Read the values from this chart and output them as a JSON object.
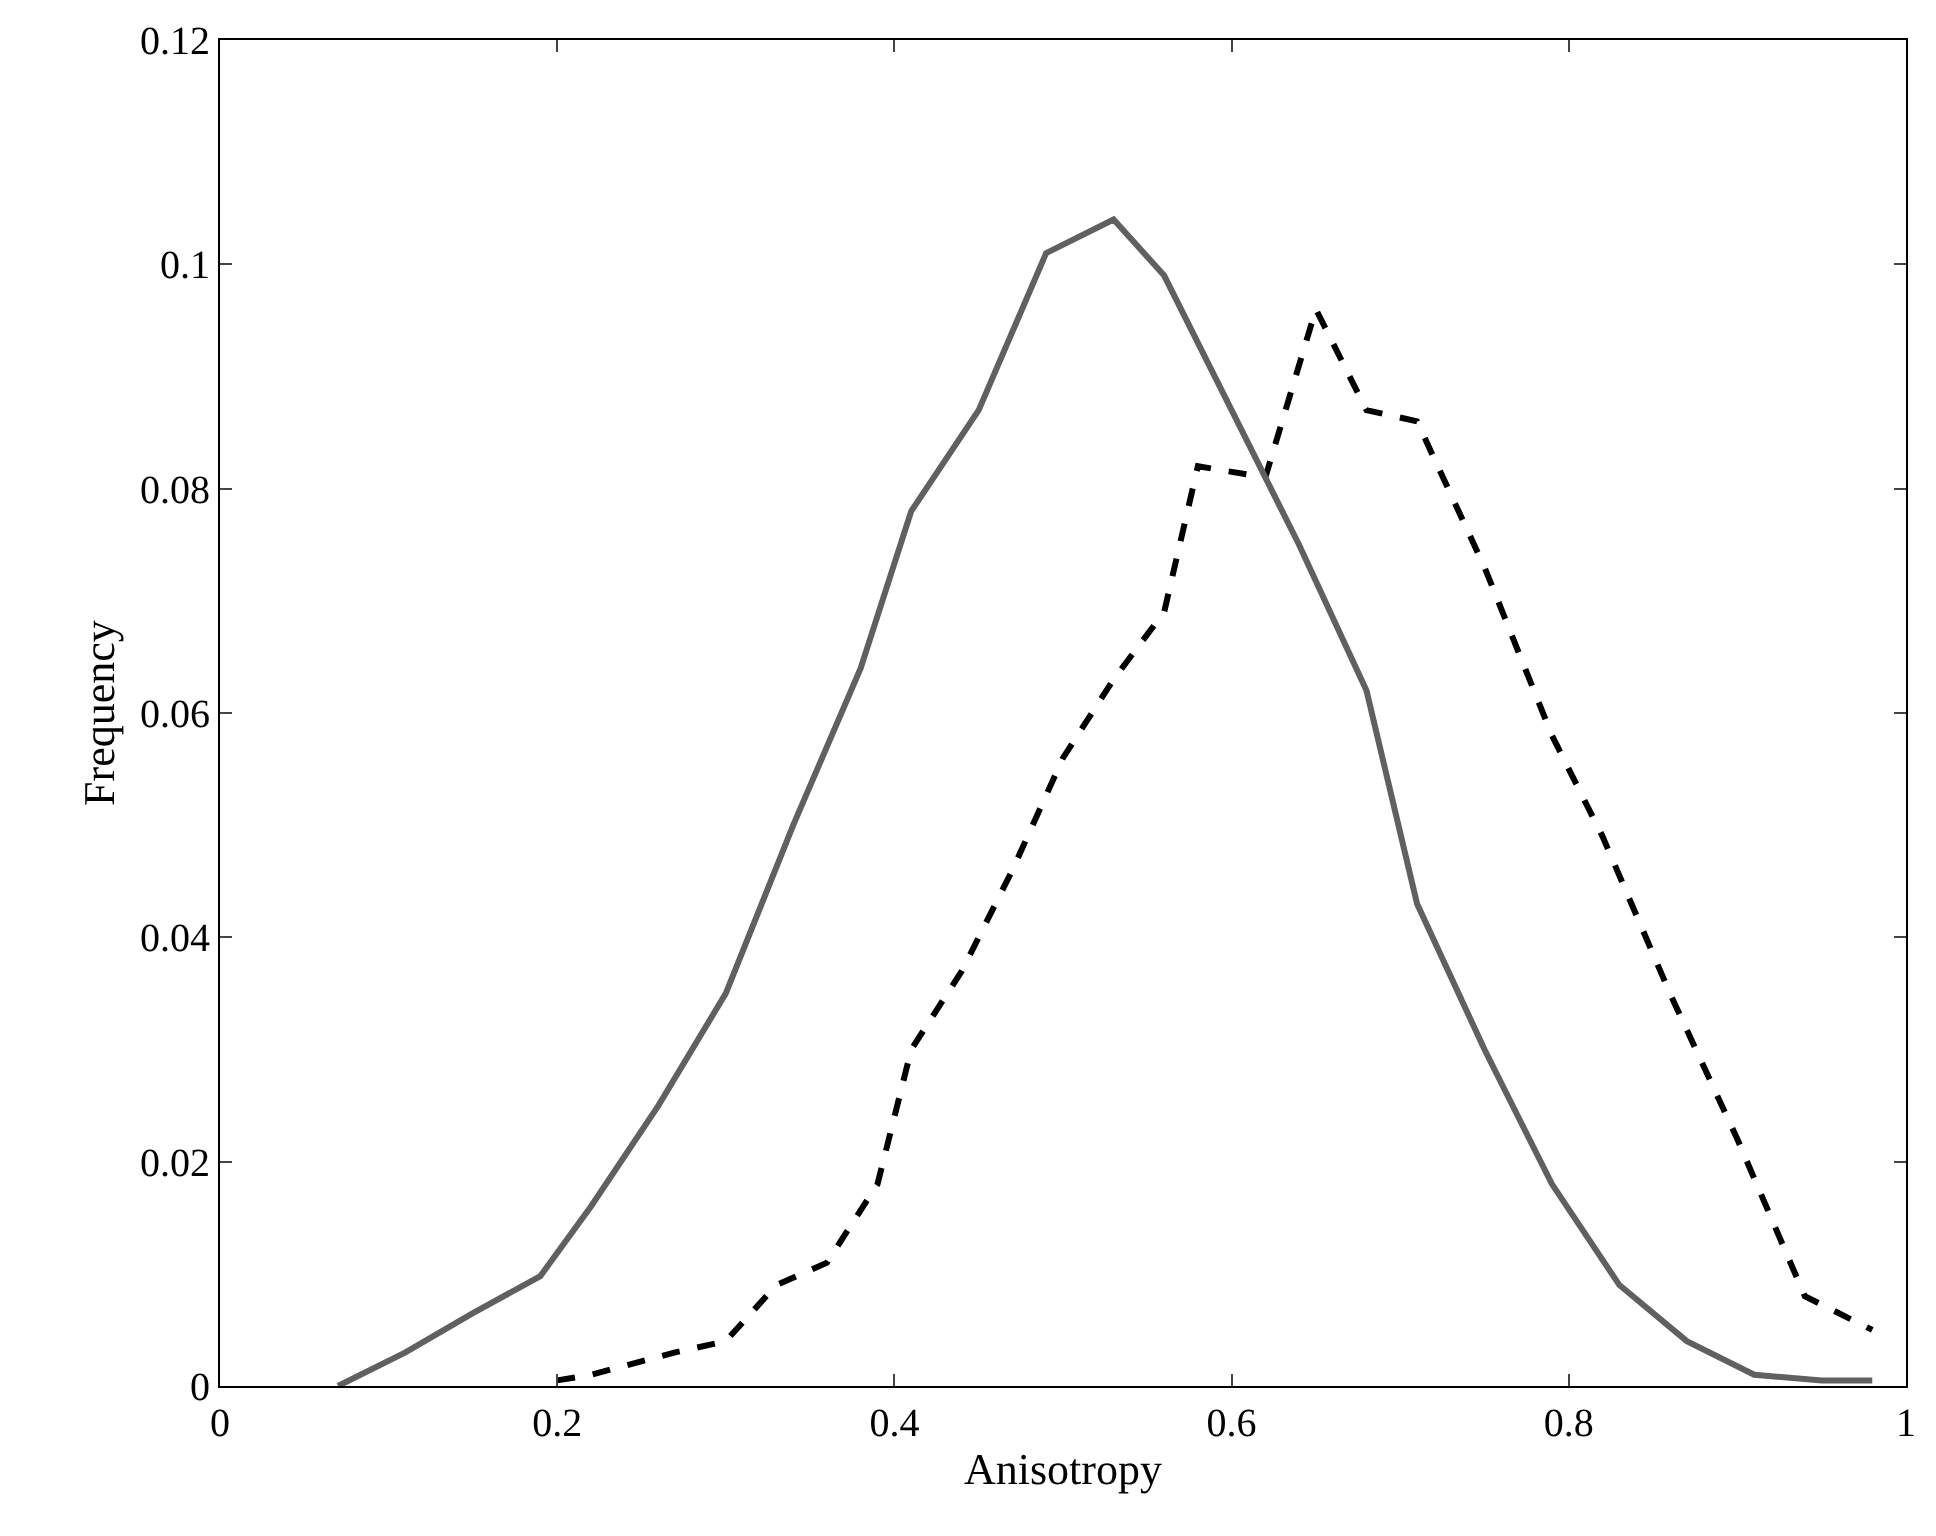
{
  "chart_data": {
    "type": "line",
    "xlabel": "Anisotropy",
    "ylabel": "Frequency",
    "xlim": [
      0,
      1
    ],
    "ylim": [
      0,
      0.12
    ],
    "xticks": [
      0,
      0.2,
      0.4,
      0.6,
      0.8,
      1
    ],
    "yticks": [
      0,
      0.02,
      0.04,
      0.06,
      0.08,
      0.1,
      0.12
    ],
    "marker": "none",
    "series": [
      {
        "color": "#000000",
        "line_style": "dashed",
        "x": [
          0.2,
          0.22,
          0.27,
          0.3,
          0.33,
          0.36,
          0.39,
          0.41,
          0.44,
          0.47,
          0.5,
          0.53,
          0.56,
          0.58,
          0.62,
          0.65,
          0.68,
          0.71,
          0.75,
          0.79,
          0.82,
          0.86,
          0.9,
          0.94,
          0.98
        ],
        "values": [
          0.0005,
          0.001,
          0.003,
          0.004,
          0.009,
          0.011,
          0.018,
          0.03,
          0.037,
          0.046,
          0.056,
          0.063,
          0.069,
          0.082,
          0.081,
          0.096,
          0.087,
          0.086,
          0.073,
          0.058,
          0.049,
          0.035,
          0.022,
          0.008,
          0.005
        ]
      },
      {
        "color": "#606060",
        "line_style": "solid",
        "x": [
          0.07,
          0.11,
          0.15,
          0.19,
          0.22,
          0.26,
          0.3,
          0.34,
          0.38,
          0.41,
          0.45,
          0.49,
          0.53,
          0.56,
          0.6,
          0.64,
          0.68,
          0.71,
          0.75,
          0.79,
          0.83,
          0.87,
          0.91,
          0.95,
          0.98
        ],
        "values": [
          0,
          0.003,
          0.0065,
          0.0098,
          0.016,
          0.025,
          0.035,
          0.05,
          0.064,
          0.078,
          0.087,
          0.101,
          0.104,
          0.099,
          0.087,
          0.075,
          0.062,
          0.043,
          0.03,
          0.018,
          0.009,
          0.004,
          0.001,
          0.0005,
          0.0005
        ]
      }
    ]
  }
}
